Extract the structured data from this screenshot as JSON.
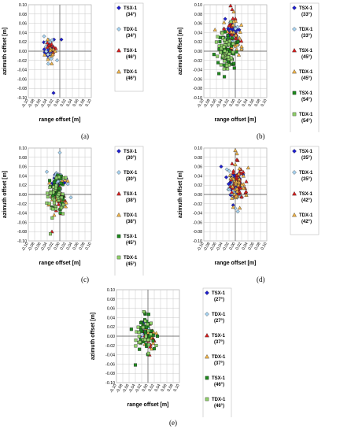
{
  "colors": {
    "tsx_blue": "#1f1fd0",
    "tdx_lightblue": "#a8d4f2",
    "tsx_red": "#d92020",
    "tdx_orange": "#f3b64a",
    "tsx_darkgreen": "#1f8a1f",
    "tdx_lightgreen": "#8fd06a",
    "grid": "#c8c8c8"
  },
  "chart_data": [
    {
      "panel": "a",
      "caption": "(a)",
      "type": "scatter",
      "xlabel": "range offset [m]",
      "ylabel": "azimuth offset [m]",
      "xlim": [
        -0.1,
        0.1
      ],
      "ylim": [
        -0.1,
        0.1
      ],
      "xticks": [
        "-0.10",
        "-0.08",
        "-0.06",
        "-0.04",
        "-0.02",
        "0.00",
        "0.02",
        "0.04",
        "0.06",
        "0.08",
        "0.10"
      ],
      "yticks": [
        "0.10",
        "0.08",
        "0.06",
        "0.04",
        "0.02",
        "0.00",
        "-0.02",
        "-0.04",
        "-0.06",
        "-0.08",
        "-0.10"
      ],
      "grid": true,
      "series": [
        {
          "sat": "TSX-1",
          "angle": "(34°)",
          "marker": "diamond",
          "color": "#1f1fd0",
          "n": 18,
          "cx": -0.03,
          "cy": 0.005,
          "sx": 0.012,
          "sy": 0.01,
          "extra": [
            [
              -0.02,
              -0.09
            ],
            [
              0.005,
              0.025
            ]
          ]
        },
        {
          "sat": "TDX-1",
          "angle": "(34°)",
          "marker": "diamond",
          "color": "#a8d4f2",
          "n": 14,
          "cx": -0.03,
          "cy": 0.0,
          "sx": 0.013,
          "sy": 0.012,
          "extra": [
            [
              -0.05,
              0.032
            ]
          ]
        },
        {
          "sat": "TSX-1",
          "angle": "(46°)",
          "marker": "triangle",
          "color": "#d92020",
          "n": 10,
          "cx": -0.03,
          "cy": 0.008,
          "sx": 0.01,
          "sy": 0.008
        },
        {
          "sat": "TDX-1",
          "angle": "(46°)",
          "marker": "triangle",
          "color": "#f3b64a",
          "n": 10,
          "cx": -0.03,
          "cy": -0.005,
          "sx": 0.01,
          "sy": 0.012
        }
      ]
    },
    {
      "panel": "b",
      "caption": "(b)",
      "type": "scatter",
      "xlabel": "range offset [m]",
      "ylabel": "azimuth offset [m]",
      "xlim": [
        -0.1,
        0.1
      ],
      "ylim": [
        -0.1,
        0.1
      ],
      "xticks": [
        "-0.10",
        "-0.08",
        "-0.06",
        "-0.04",
        "-0.02",
        "0.00",
        "0.02",
        "0.04",
        "0.06",
        "0.08",
        "0.10"
      ],
      "yticks": [
        "0.10",
        "0.08",
        "0.06",
        "0.04",
        "0.02",
        "0.00",
        "-0.02",
        "-0.04",
        "-0.06",
        "-0.08",
        "-0.10"
      ],
      "grid": true,
      "series": [
        {
          "sat": "TSX-1",
          "angle": "(33°)",
          "marker": "diamond",
          "color": "#1f1fd0",
          "n": 30,
          "cx": -0.01,
          "cy": 0.035,
          "sx": 0.01,
          "sy": 0.012
        },
        {
          "sat": "TDX-1",
          "angle": "(33°)",
          "marker": "diamond",
          "color": "#a8d4f2",
          "n": 30,
          "cx": -0.01,
          "cy": 0.03,
          "sx": 0.012,
          "sy": 0.012
        },
        {
          "sat": "TSX-1",
          "angle": "(45°)",
          "marker": "triangle",
          "color": "#d92020",
          "n": 25,
          "cx": -0.012,
          "cy": 0.03,
          "sx": 0.012,
          "sy": 0.025,
          "extra": [
            [
              -0.015,
              0.098
            ],
            [
              -0.01,
              0.09
            ]
          ]
        },
        {
          "sat": "TDX-1",
          "angle": "(45°)",
          "marker": "triangle",
          "color": "#f3b64a",
          "n": 25,
          "cx": -0.01,
          "cy": 0.025,
          "sx": 0.015,
          "sy": 0.025,
          "extra": [
            [
              0.02,
              0.01
            ],
            [
              -0.005,
              0.085
            ]
          ]
        },
        {
          "sat": "TSX-1",
          "angle": "(54°)",
          "marker": "square",
          "color": "#1f8a1f",
          "n": 55,
          "cx": -0.028,
          "cy": 0.0,
          "sx": 0.014,
          "sy": 0.02
        },
        {
          "sat": "TDX-1",
          "angle": "(54°)",
          "marker": "square",
          "color": "#8fd06a",
          "n": 50,
          "cx": -0.03,
          "cy": -0.005,
          "sx": 0.014,
          "sy": 0.02
        }
      ]
    },
    {
      "panel": "c",
      "caption": "(c)",
      "type": "scatter",
      "xlabel": "range offset [m]",
      "ylabel": "azimuth offset [m]",
      "xlim": [
        -0.1,
        0.1
      ],
      "ylim": [
        -0.1,
        0.1
      ],
      "xticks": [
        "-0.10",
        "-0.08",
        "-0.06",
        "-0.04",
        "-0.02",
        "0.00",
        "0.02",
        "0.04",
        "0.06",
        "0.08",
        "0.10"
      ],
      "yticks": [
        "0.10",
        "0.08",
        "0.06",
        "0.04",
        "0.02",
        "0.00",
        "-0.02",
        "-0.04",
        "-0.06",
        "-0.08",
        "-0.10"
      ],
      "grid": true,
      "series": [
        {
          "sat": "TSX-1",
          "angle": "(30°)",
          "marker": "diamond",
          "color": "#1f1fd0",
          "n": 25,
          "cx": -0.005,
          "cy": 0.025,
          "sx": 0.012,
          "sy": 0.012
        },
        {
          "sat": "TDX-1",
          "angle": "(30°)",
          "marker": "diamond",
          "color": "#a8d4f2",
          "n": 30,
          "cx": -0.005,
          "cy": 0.02,
          "sx": 0.014,
          "sy": 0.015,
          "extra": [
            [
              0.0,
              0.09
            ]
          ]
        },
        {
          "sat": "TSX-1",
          "angle": "(38°)",
          "marker": "triangle",
          "color": "#d92020",
          "n": 30,
          "cx": -0.005,
          "cy": 0.0,
          "sx": 0.012,
          "sy": 0.018,
          "extra": [
            [
              -0.025,
              -0.08
            ]
          ]
        },
        {
          "sat": "TDX-1",
          "angle": "(38°)",
          "marker": "triangle",
          "color": "#f3b64a",
          "n": 35,
          "cx": -0.005,
          "cy": -0.005,
          "sx": 0.014,
          "sy": 0.02
        },
        {
          "sat": "TSX-1",
          "angle": "(45°)",
          "marker": "square",
          "color": "#1f8a1f",
          "n": 35,
          "cx": -0.01,
          "cy": 0.0,
          "sx": 0.014,
          "sy": 0.02
        },
        {
          "sat": "TDX-1",
          "angle": "(45°)",
          "marker": "square",
          "color": "#8fd06a",
          "n": 40,
          "cx": -0.012,
          "cy": -0.005,
          "sx": 0.015,
          "sy": 0.022,
          "extra": [
            [
              -0.03,
              -0.085
            ]
          ]
        }
      ]
    },
    {
      "panel": "d",
      "caption": "(d)",
      "type": "scatter",
      "xlabel": "range offset [m]",
      "ylabel": "azimuth offset [m]",
      "xlim": [
        -0.1,
        0.1
      ],
      "ylim": [
        -0.1,
        0.1
      ],
      "xticks": [
        "-0.10",
        "-0.08",
        "-0.06",
        "-0.04",
        "-0.02",
        "0.00",
        "0.02",
        "0.04",
        "0.06",
        "0.08",
        "0.10"
      ],
      "yticks": [
        "0.10",
        "0.08",
        "0.06",
        "0.04",
        "0.02",
        "0.00",
        "-0.02",
        "-0.04",
        "-0.06",
        "-0.08",
        "-0.10"
      ],
      "grid": true,
      "series": [
        {
          "sat": "TSX-1",
          "angle": "(35°)",
          "marker": "diamond",
          "color": "#1f1fd0",
          "n": 35,
          "cx": 0.0,
          "cy": 0.025,
          "sx": 0.012,
          "sy": 0.015,
          "extra": [
            [
              -0.045,
              0.06
            ]
          ]
        },
        {
          "sat": "TDX-1",
          "angle": "(35°)",
          "marker": "diamond",
          "color": "#a8d4f2",
          "n": 30,
          "cx": 0.0,
          "cy": 0.015,
          "sx": 0.012,
          "sy": 0.018,
          "extra": [
            [
              0.0,
              -0.03
            ]
          ]
        },
        {
          "sat": "TSX-1",
          "angle": "(42°)",
          "marker": "triangle",
          "color": "#d92020",
          "n": 40,
          "cx": 0.008,
          "cy": 0.02,
          "sx": 0.012,
          "sy": 0.02,
          "extra": [
            [
              0.005,
              0.075
            ]
          ]
        },
        {
          "sat": "TDX-1",
          "angle": "(42°)",
          "marker": "triangle",
          "color": "#f3b64a",
          "n": 35,
          "cx": 0.005,
          "cy": 0.02,
          "sx": 0.012,
          "sy": 0.02,
          "extra": [
            [
              0.0,
              0.095
            ],
            [
              0.005,
              0.088
            ]
          ]
        }
      ]
    },
    {
      "panel": "e",
      "caption": "(e)",
      "type": "scatter",
      "xlabel": "range offset [m]",
      "ylabel": "azimuth offset [m]",
      "xlim": [
        -0.1,
        0.1
      ],
      "ylim": [
        -0.1,
        0.1
      ],
      "xticks": [
        "-0.10",
        "-0.08",
        "-0.06",
        "-0.04",
        "-0.02",
        "0.00",
        "0.02",
        "0.04",
        "0.06",
        "0.08",
        "0.10"
      ],
      "yticks": [
        "0.10",
        "0.08",
        "0.06",
        "0.04",
        "0.02",
        "0.00",
        "-0.02",
        "-0.04",
        "-0.06",
        "-0.08",
        "-0.10"
      ],
      "grid": true,
      "series": [
        {
          "sat": "TSX-1",
          "angle": "(27°)",
          "marker": "diamond",
          "color": "#1f1fd0",
          "n": 15,
          "cx": -0.005,
          "cy": 0.015,
          "sx": 0.01,
          "sy": 0.01
        },
        {
          "sat": "TDX-1",
          "angle": "(27°)",
          "marker": "diamond",
          "color": "#a8d4f2",
          "n": 15,
          "cx": -0.005,
          "cy": 0.01,
          "sx": 0.01,
          "sy": 0.01
        },
        {
          "sat": "TSX-1",
          "angle": "(37°)",
          "marker": "triangle",
          "color": "#d92020",
          "n": 20,
          "cx": 0.005,
          "cy": 0.0,
          "sx": 0.01,
          "sy": 0.012,
          "extra": [
            [
              0.005,
              -0.04
            ]
          ]
        },
        {
          "sat": "TDX-1",
          "angle": "(37°)",
          "marker": "triangle",
          "color": "#f3b64a",
          "n": 15,
          "cx": 0.0,
          "cy": 0.0,
          "sx": 0.01,
          "sy": 0.012
        },
        {
          "sat": "TSX-1",
          "angle": "(46°)",
          "marker": "square",
          "color": "#1f8a1f",
          "n": 35,
          "cx": -0.01,
          "cy": 0.005,
          "sx": 0.015,
          "sy": 0.02,
          "extra": [
            [
              -0.04,
              -0.062
            ],
            [
              0.03,
              0.0
            ],
            [
              -0.01,
              0.05
            ]
          ]
        },
        {
          "sat": "TDX-1",
          "angle": "(46°)",
          "marker": "square",
          "color": "#8fd06a",
          "n": 25,
          "cx": -0.01,
          "cy": 0.0,
          "sx": 0.014,
          "sy": 0.018
        }
      ]
    }
  ]
}
